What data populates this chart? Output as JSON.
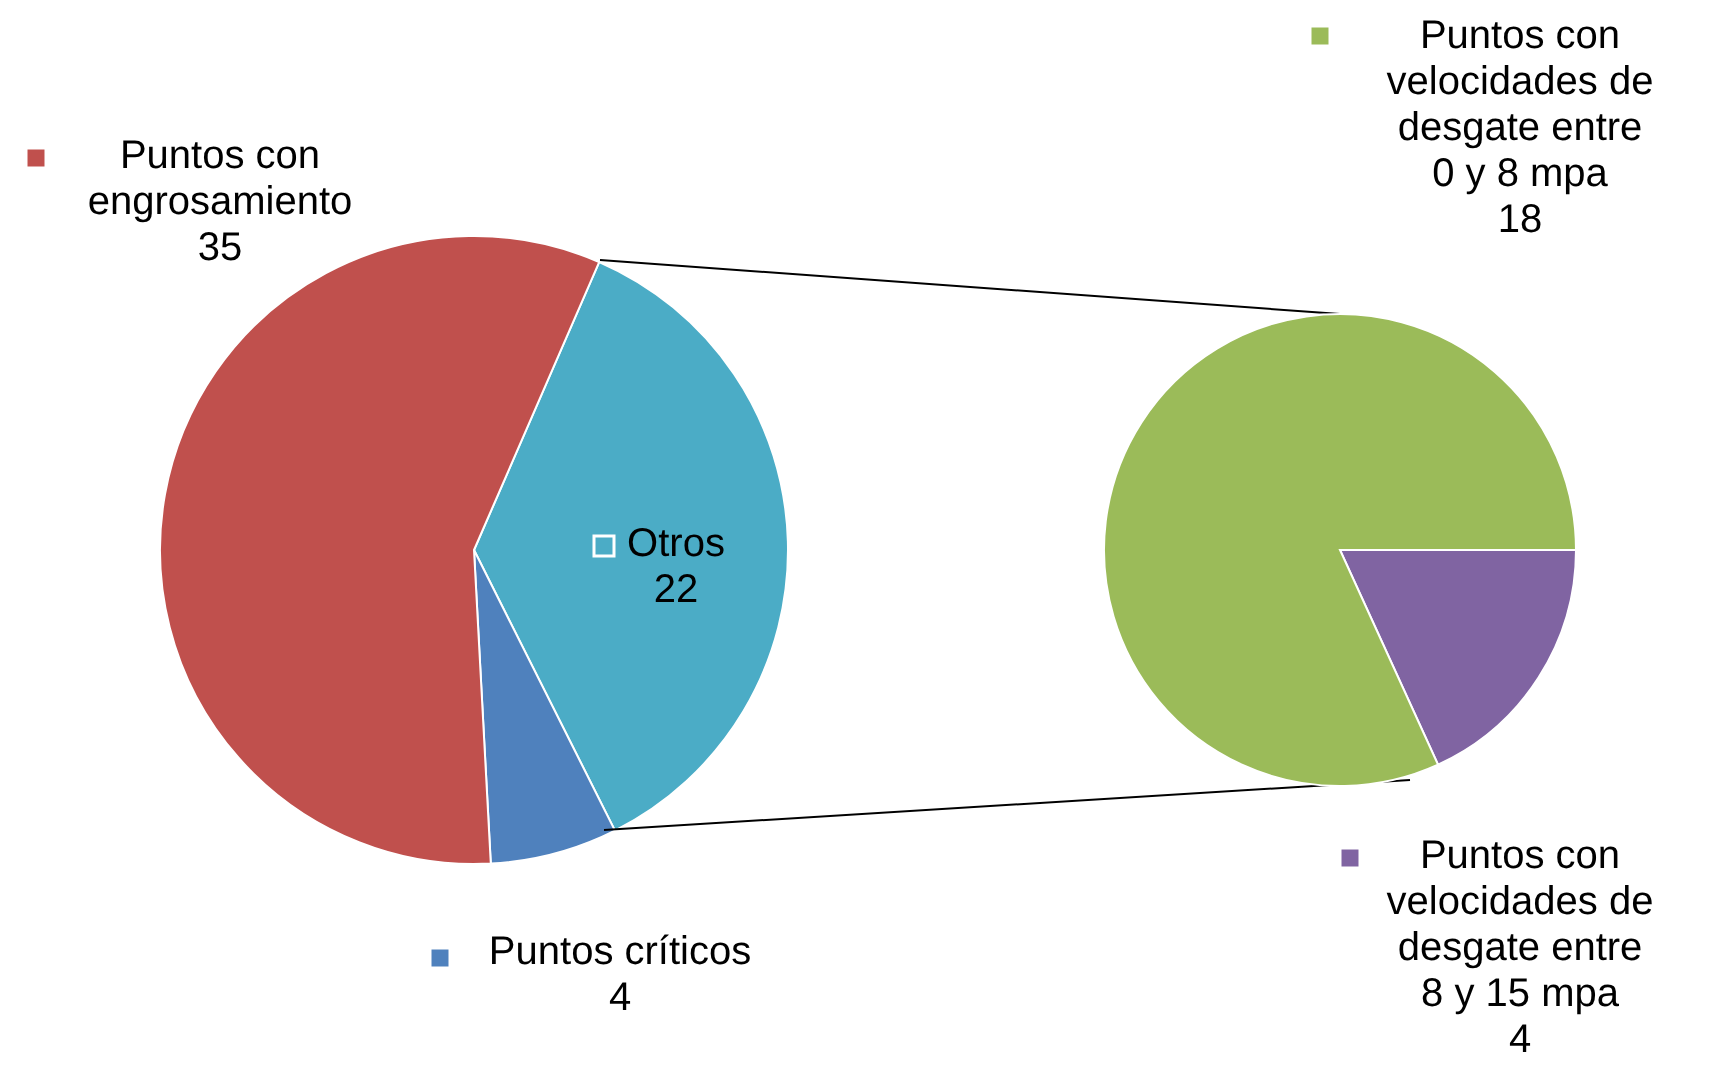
{
  "chart_data": [
    {
      "type": "pie",
      "categories": [
        "Otros",
        "Puntos críticos",
        "Puntos con engrosamiento"
      ],
      "values": [
        22,
        4,
        35
      ],
      "colors": [
        "#4bacc6",
        "#4f81bd",
        "#c0504d"
      ],
      "data_labels": true,
      "legend": "left"
    },
    {
      "type": "pie",
      "categories": [
        "Puntos con velocidades de desgate entre 8 y 15 mpa",
        "Puntos con velocidades de desgate entre 0 y 8 mpa"
      ],
      "values": [
        4,
        18
      ],
      "colors": [
        "#8064a2",
        "#9bbb59"
      ],
      "data_labels": true,
      "legend": "right"
    }
  ]
}
